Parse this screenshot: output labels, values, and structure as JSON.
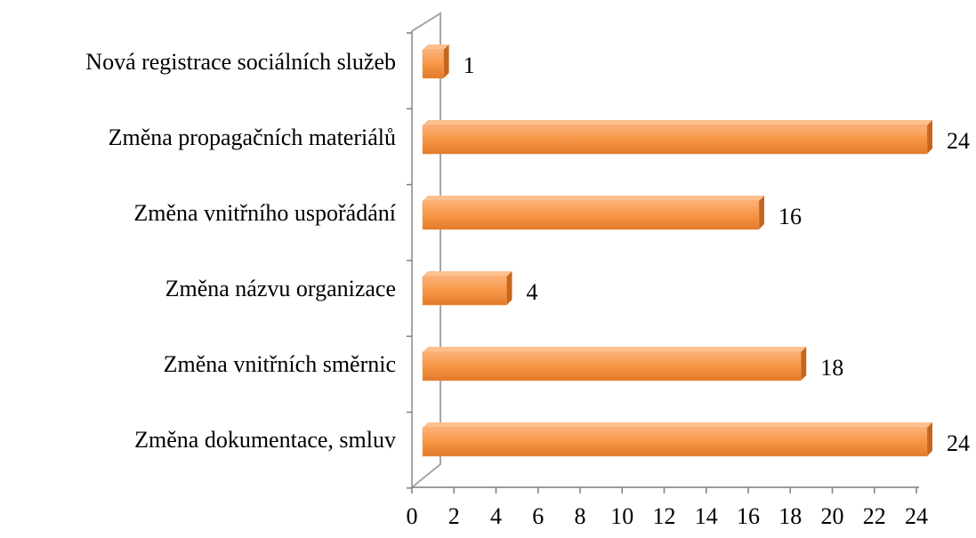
{
  "chart_data": {
    "type": "bar",
    "orientation": "horizontal",
    "categories": [
      "Nová registrace sociálních služeb",
      "Změna propagačních materiálů",
      "Změna vnitřního uspořádání",
      "Změna názvu organizace",
      "Změna vnitřních směrnic",
      "Změna dokumentace, smluv"
    ],
    "values": [
      1,
      24,
      16,
      4,
      18,
      24
    ],
    "color": "#f79646",
    "xlim": [
      0,
      24
    ],
    "xticks": [
      0,
      2,
      4,
      6,
      8,
      10,
      12,
      14,
      16,
      18,
      20,
      22,
      24
    ],
    "grid": false
  }
}
